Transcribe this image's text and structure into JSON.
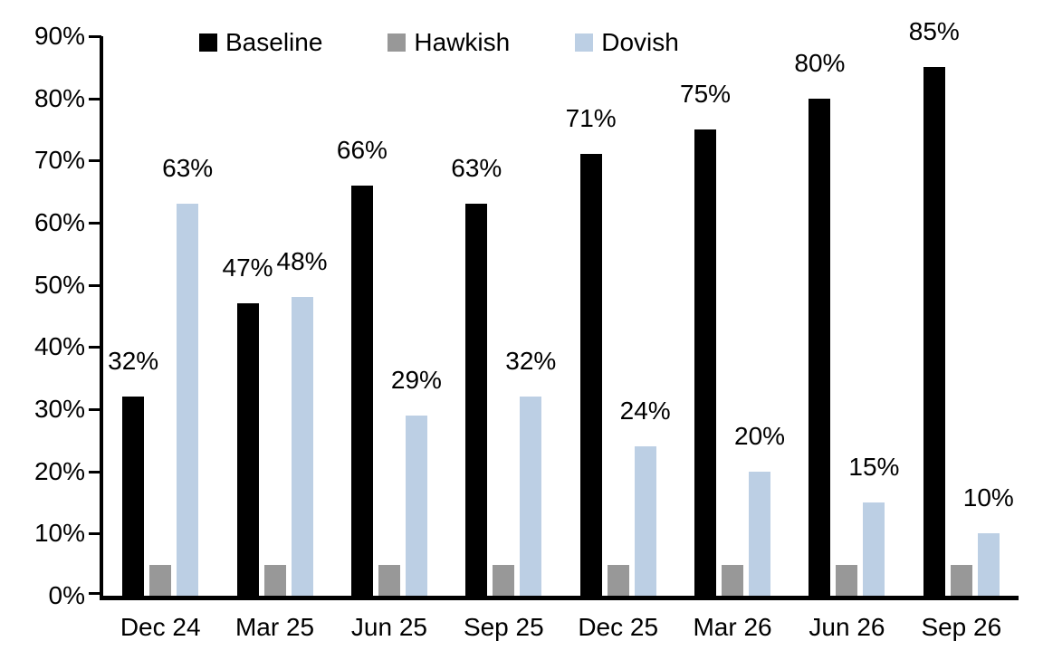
{
  "chart_data": {
    "type": "bar",
    "title": "",
    "xlabel": "",
    "ylabel": "",
    "grid": false,
    "legend_position": "top",
    "ylim": [
      0,
      90
    ],
    "ytick_step": 10,
    "ytick_labels": [
      "0%",
      "10%",
      "20%",
      "30%",
      "40%",
      "50%",
      "60%",
      "70%",
      "80%",
      "90%"
    ],
    "categories": [
      "Dec 24",
      "Mar 25",
      "Jun 25",
      "Sep 25",
      "Dec 25",
      "Mar 26",
      "Jun 26",
      "Sep 26"
    ],
    "series": [
      {
        "name": "Baseline",
        "color": "#000000",
        "values": [
          32,
          47,
          66,
          63,
          71,
          75,
          80,
          85
        ],
        "data_labels": [
          "32%",
          "47%",
          "66%",
          "63%",
          "71%",
          "75%",
          "80%",
          "85%"
        ]
      },
      {
        "name": "Hawkish",
        "color": "#989898",
        "values": [
          5,
          5,
          5,
          5,
          5,
          5,
          5,
          5
        ],
        "data_labels": null
      },
      {
        "name": "Dovish",
        "color": "#BCCFE4",
        "values": [
          63,
          48,
          29,
          32,
          24,
          20,
          15,
          10
        ],
        "data_labels": [
          "63%",
          "48%",
          "29%",
          "32%",
          "24%",
          "20%",
          "15%",
          "10%"
        ]
      }
    ]
  }
}
